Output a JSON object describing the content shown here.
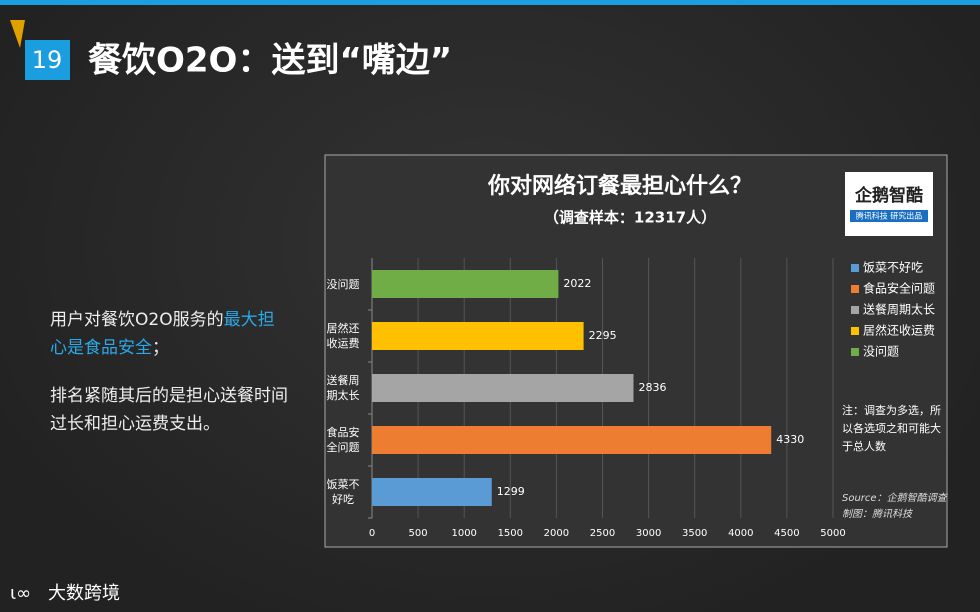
{
  "slide": {
    "number": "19",
    "title": "餐饮O2O：送到“嘴边”",
    "text": {
      "part1": "用户对餐饮O2O服务的",
      "highlight": "最大担心是食品安全",
      "part2": "；",
      "paragraph2": "排名紧随其后的是担心送餐时间过长和担心运费支出。"
    },
    "logo": "大数跨境"
  },
  "chart_data": {
    "type": "hbar",
    "title": "你对网络订餐最担心什么？",
    "subtitle": "（调查样本：12317人）",
    "categories": [
      "饭菜不好吃",
      "食品安全问题",
      "送餐周期太长",
      "居然还收运费",
      "没问题"
    ],
    "values": [
      1299,
      4330,
      2836,
      2295,
      2022
    ],
    "colors": [
      "#5b9bd5",
      "#ed7d31",
      "#a5a5a5",
      "#ffc000",
      "#70ad47"
    ],
    "xlim": [
      0,
      5000
    ],
    "xticks": [
      0,
      500,
      1000,
      1500,
      2000,
      2500,
      3000,
      3500,
      4000,
      4500,
      5000
    ],
    "grid": true,
    "legend": "right",
    "note": "注：调查为多选，所以各选项之和可能大于总人数",
    "source": "Source：企鹅智酷调查",
    "credit": "制图：腾讯科技",
    "brand": {
      "name": "企鹅智酷",
      "tagline": "腾讯科技 研究出品"
    }
  }
}
